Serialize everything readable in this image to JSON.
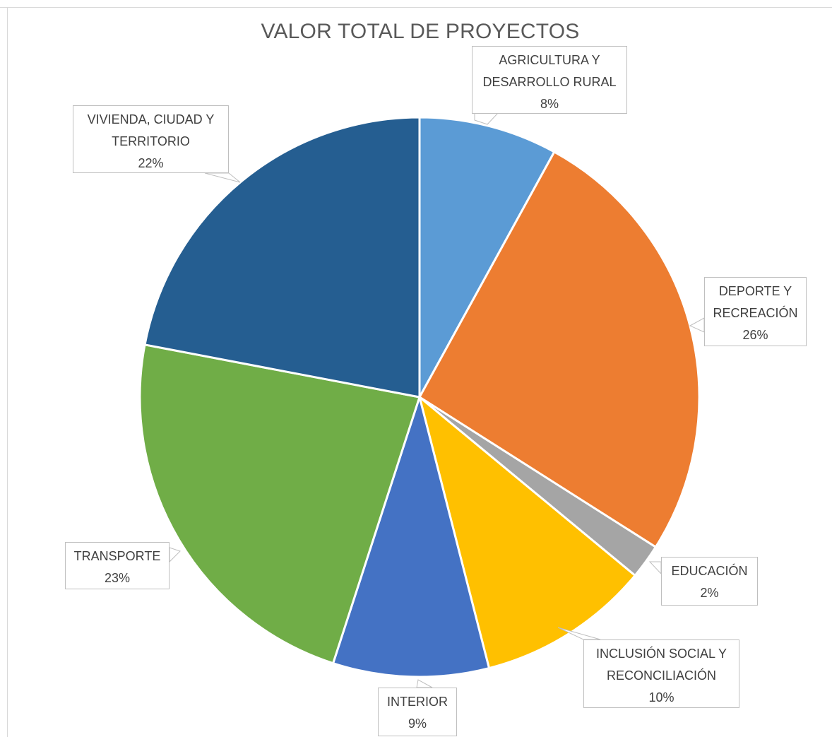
{
  "chart_data": {
    "type": "pie",
    "title": "VALOR TOTAL DE PROYECTOS",
    "slices": [
      {
        "label": "AGRICULTURA Y DESARROLLO RURAL",
        "label_lines": [
          "AGRICULTURA Y",
          "DESARROLLO RURAL"
        ],
        "value": 8,
        "value_label": "8%",
        "color": "#5B9BD5"
      },
      {
        "label": "DEPORTE Y RECREACIÓN",
        "label_lines": [
          "DEPORTE Y",
          "RECREACIÓN"
        ],
        "value": 26,
        "value_label": "26%",
        "color": "#ED7D31"
      },
      {
        "label": "EDUCACIÓN",
        "label_lines": [
          "EDUCACIÓN"
        ],
        "value": 2,
        "value_label": "2%",
        "color": "#A5A5A5"
      },
      {
        "label": "INCLUSIÓN SOCIAL Y RECONCILIACIÓN",
        "label_lines": [
          "INCLUSIÓN SOCIAL Y",
          "RECONCILIACIÓN"
        ],
        "value": 10,
        "value_label": "10%",
        "color": "#FFC000"
      },
      {
        "label": "INTERIOR",
        "label_lines": [
          "INTERIOR"
        ],
        "value": 9,
        "value_label": "9%",
        "color": "#4472C4"
      },
      {
        "label": "TRANSPORTE",
        "label_lines": [
          "TRANSPORTE"
        ],
        "value": 23,
        "value_label": "23%",
        "color": "#70AD47"
      },
      {
        "label": "VIVIENDA, CIUDAD Y TERRITORIO",
        "label_lines": [
          "VIVIENDA, CIUDAD Y",
          "TERRITORIO"
        ],
        "value": 22,
        "value_label": "22%",
        "color": "#255E91"
      }
    ],
    "legend": "none",
    "start_angle": "12 o'clock, clockwise"
  }
}
